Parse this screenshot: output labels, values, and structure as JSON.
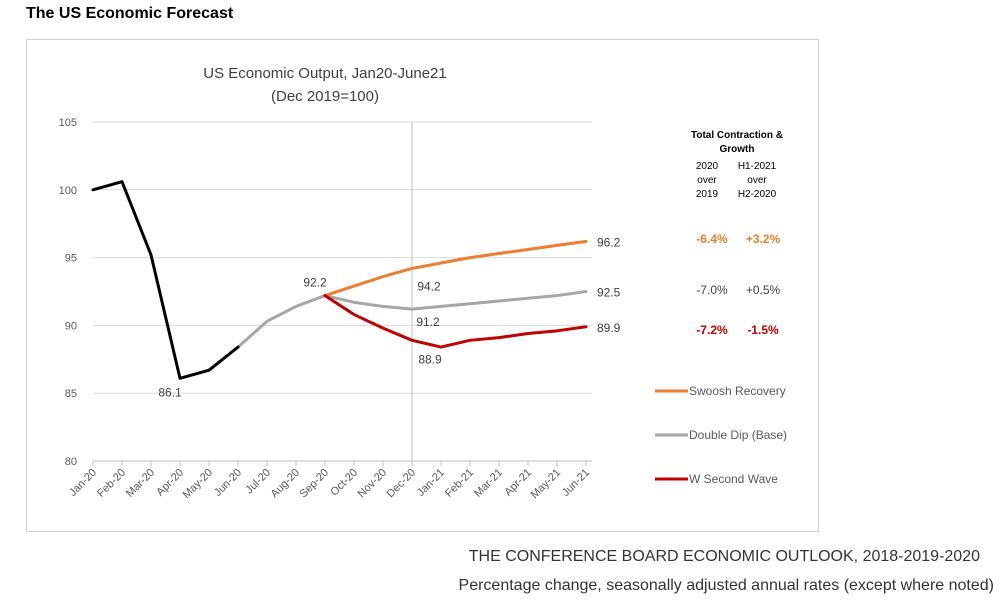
{
  "page_title": "The US Economic Forecast",
  "footer": {
    "line1": "THE CONFERENCE BOARD ECONOMIC OUTLOOK, 2018-2019-2020",
    "line2": "Percentage change, seasonally adjusted annual rates (except where noted)"
  },
  "chart_data": {
    "type": "line",
    "title": "US Economic Output, Jan20-June21",
    "subtitle": "(Dec 2019=100)",
    "ylim": [
      80,
      105
    ],
    "yticks": [
      80,
      85,
      90,
      95,
      100,
      105
    ],
    "grid": true,
    "categories": [
      "Jan-20",
      "Feb-20",
      "Mar-20",
      "Apr-20",
      "May-20",
      "Jun-20",
      "Jul-20",
      "Aug-20",
      "Sep-20",
      "Oct-20",
      "Nov-20",
      "Dec-20",
      "Jan-21",
      "Feb-21",
      "Mar-21",
      "Apr-21",
      "May-21",
      "Jun-21"
    ],
    "colors": {
      "actual": "#000000",
      "base": "#a6a6a6",
      "swoosh": "#ed7d31",
      "w": "#c00000",
      "label": "#404040"
    },
    "series": [
      {
        "key": "actual",
        "values": [
          100.0,
          100.6,
          95.2,
          86.1,
          86.7,
          88.4,
          null,
          null,
          null,
          null,
          null,
          null,
          null,
          null,
          null,
          null,
          null,
          null
        ]
      },
      {
        "key": "base_bridge",
        "values": [
          null,
          null,
          null,
          null,
          null,
          88.4,
          90.3,
          91.4,
          92.2,
          null,
          null,
          null,
          null,
          null,
          null,
          null,
          null,
          null
        ]
      },
      {
        "key": "swoosh",
        "name": "Swoosh Recovery",
        "values": [
          null,
          null,
          null,
          null,
          null,
          null,
          null,
          null,
          92.2,
          92.9,
          93.6,
          94.2,
          94.6,
          95.0,
          95.3,
          95.6,
          95.9,
          96.2
        ]
      },
      {
        "key": "base",
        "name": "Double Dip (Base)",
        "values": [
          null,
          null,
          null,
          null,
          null,
          null,
          null,
          null,
          92.2,
          91.7,
          91.4,
          91.2,
          91.4,
          91.6,
          91.8,
          92.0,
          92.2,
          92.5
        ]
      },
      {
        "key": "w",
        "name": "W Second Wave",
        "values": [
          null,
          null,
          null,
          null,
          null,
          null,
          null,
          null,
          92.2,
          90.8,
          89.8,
          88.9,
          88.4,
          88.9,
          89.1,
          89.4,
          89.6,
          89.9
        ]
      }
    ],
    "point_labels": [
      {
        "series": "actual",
        "index": 3,
        "text": "86.1",
        "pos": "below"
      },
      {
        "series": "base",
        "index": 8,
        "text": "92.2",
        "pos": "above"
      },
      {
        "series": "swoosh",
        "index": 11,
        "text": "94.2",
        "pos": "below"
      },
      {
        "series": "base",
        "index": 11,
        "text": "91.2",
        "pos": "below"
      },
      {
        "series": "w",
        "index": 11,
        "text": "88.9",
        "pos": "below"
      },
      {
        "series": "swoosh",
        "index": 17,
        "text": "96.2",
        "pos": "right"
      },
      {
        "series": "base",
        "index": 17,
        "text": "92.5",
        "pos": "right"
      },
      {
        "series": "w",
        "index": 17,
        "text": "89.9",
        "pos": "right"
      }
    ],
    "vertical_marker_index": 11,
    "table": {
      "header_title": [
        "Total Contraction &",
        "Growth"
      ],
      "col1": [
        "2020",
        "over",
        "2019"
      ],
      "col2": [
        "H1-2021",
        "over",
        "H2-2020"
      ],
      "rows": [
        {
          "series": "swoosh",
          "v1": "-6.4%",
          "v2": "+3.2%",
          "color": "#ed7d31"
        },
        {
          "series": "base",
          "v1": "-7.0%",
          "v2": "+0.5%",
          "color": "#404040"
        },
        {
          "series": "w",
          "v1": "-7.2%",
          "v2": "-1.5%",
          "color": "#c00000"
        }
      ]
    },
    "legend": [
      {
        "series": "swoosh",
        "label": "Swoosh Recovery",
        "color": "#ed7d31"
      },
      {
        "series": "base",
        "label": "Double Dip (Base)",
        "color": "#a6a6a6"
      },
      {
        "series": "w",
        "label": "W Second Wave",
        "color": "#c00000"
      }
    ]
  }
}
